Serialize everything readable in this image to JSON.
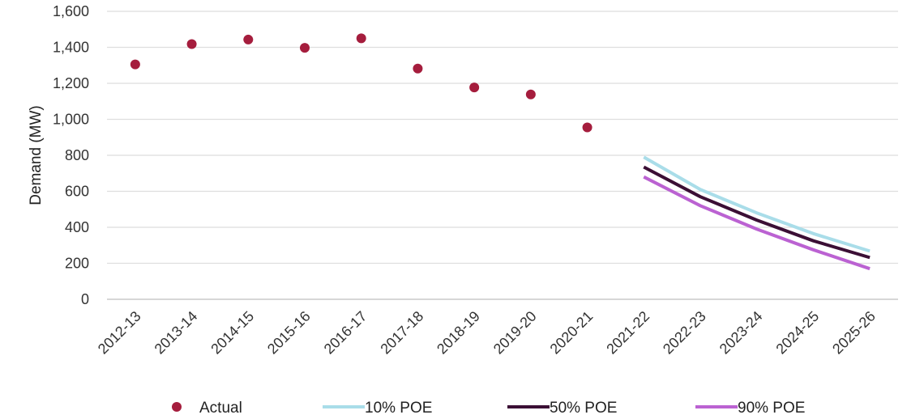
{
  "chart_data": {
    "type": "line",
    "ylabel": "Demand (MW)",
    "ylim": [
      0,
      1600
    ],
    "yticks": [
      0,
      200,
      400,
      600,
      800,
      1000,
      1200,
      1400,
      1600
    ],
    "ytick_labels": [
      "0",
      "200",
      "400",
      "600",
      "800",
      "1,000",
      "1,200",
      "1,400",
      "1,600"
    ],
    "categories": [
      "2012-13",
      "2013-14",
      "2014-15",
      "2015-16",
      "2016-17",
      "2017-18",
      "2018-19",
      "2019-20",
      "2020-21",
      "2021-22",
      "2022-23",
      "2023-24",
      "2024-25",
      "2025-26"
    ],
    "grid": true,
    "legend_position": "bottom",
    "series": [
      {
        "name": "Actual",
        "type": "scatter",
        "color": "#a51d3d",
        "values": [
          1305,
          1418,
          1443,
          1397,
          1450,
          1282,
          1177,
          1138,
          955,
          null,
          null,
          null,
          null,
          null
        ]
      },
      {
        "name": "10% POE",
        "type": "line",
        "color": "#a9dde9",
        "values": [
          null,
          null,
          null,
          null,
          null,
          null,
          null,
          null,
          null,
          790,
          610,
          480,
          365,
          268
        ]
      },
      {
        "name": "50% POE",
        "type": "line",
        "color": "#3b0f35",
        "values": [
          null,
          null,
          null,
          null,
          null,
          null,
          null,
          null,
          null,
          735,
          570,
          440,
          325,
          232
        ]
      },
      {
        "name": "90% POE",
        "type": "line",
        "color": "#bb62d2",
        "values": [
          null,
          null,
          null,
          null,
          null,
          null,
          null,
          null,
          null,
          680,
          520,
          390,
          275,
          170
        ]
      }
    ]
  }
}
